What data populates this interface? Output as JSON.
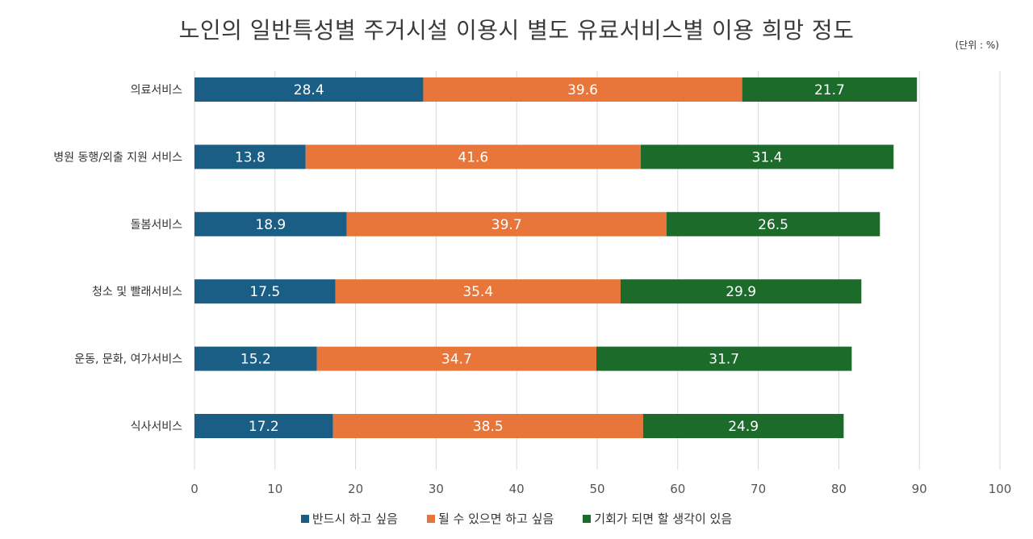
{
  "chart_data": {
    "type": "bar",
    "orientation": "horizontal",
    "stacked": true,
    "title": "노인의 일반특성별 주거시설 이용시 별도 유료서비스별 이용 희망 정도",
    "unit_label": "(단위 : %)",
    "categories": [
      "의료서비스",
      "병원 동행/외출 지원 서비스",
      "돌봄서비스",
      "청소 및 빨래서비스",
      "운동, 문화, 여가서비스",
      "식사서비스"
    ],
    "series": [
      {
        "name": "반드시 하고 싶음",
        "color": "#1a5e85",
        "values": [
          28.4,
          13.8,
          18.9,
          17.5,
          15.2,
          17.2
        ]
      },
      {
        "name": "될 수 있으면 하고 싶음",
        "color": "#e8763a",
        "values": [
          39.6,
          41.6,
          39.7,
          35.4,
          34.7,
          38.5
        ]
      },
      {
        "name": "기회가 되면 할 생각이 있음",
        "color": "#1d6b2b",
        "values": [
          21.7,
          31.4,
          26.5,
          29.9,
          31.7,
          24.9
        ]
      }
    ],
    "xlim": [
      0,
      100
    ],
    "xticks": [
      0,
      10,
      20,
      30,
      40,
      50,
      60,
      70,
      80,
      90,
      100
    ],
    "grid": true,
    "legend_position": "bottom"
  }
}
